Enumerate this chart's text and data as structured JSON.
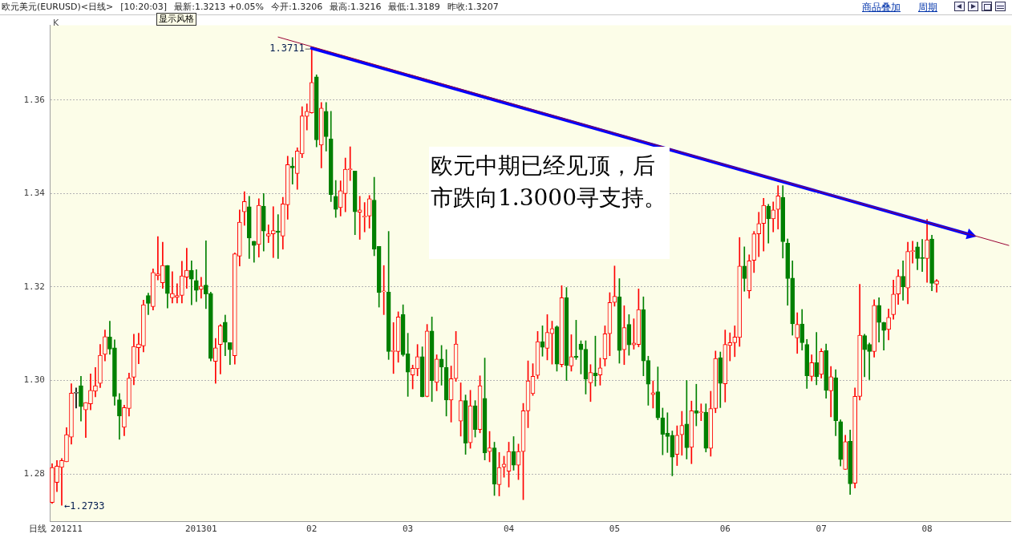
{
  "chart_data": {
    "type": "candlestick",
    "title": "欧元美元(EURUSD)<日线>",
    "annotations": [
      "[10:20:03]",
      "显示风格",
      "最新:1.3213 +0.05%",
      "今开:1.3206",
      "最高:1.3216",
      "最低:1.3189",
      "昨收:1.3207",
      "商品叠加",
      "周期",
      "K",
      "日线",
      "1.3711",
      "←1.2733",
      "欧元中期已经见顶，后市跌向1.3000寻支持。"
    ],
    "categories": [
      null,
      null,
      null,
      "201211",
      null,
      null,
      null,
      null,
      null,
      null,
      null,
      null,
      null,
      null,
      null,
      null,
      null,
      null,
      null,
      null,
      null,
      null,
      null,
      null,
      null,
      null,
      null,
      null,
      null,
      null,
      null,
      "201301",
      null,
      null,
      null,
      null,
      null,
      null,
      null,
      null,
      null,
      null,
      null,
      null,
      null,
      null,
      null,
      null,
      null,
      null,
      null,
      null,
      null,
      null,
      "02",
      null,
      null,
      null,
      null,
      null,
      null,
      null,
      null,
      null,
      null,
      null,
      null,
      null,
      null,
      null,
      null,
      null,
      null,
      null,
      "03",
      null,
      null,
      null,
      null,
      null,
      null,
      null,
      null,
      null,
      null,
      null,
      null,
      null,
      null,
      null,
      null,
      null,
      null,
      null,
      null,
      "04",
      null,
      null,
      null,
      null,
      null,
      null,
      null,
      null,
      null,
      null,
      null,
      null,
      null,
      null,
      null,
      null,
      null,
      null,
      null,
      null,
      null,
      "05",
      null,
      null,
      null,
      null,
      null,
      null,
      null,
      null,
      null,
      null,
      null,
      null,
      null,
      null,
      null,
      null,
      null,
      null,
      null,
      null,
      null,
      null,
      "06",
      null,
      null,
      null,
      null,
      null,
      null,
      null,
      null,
      null,
      null,
      null,
      null,
      null,
      null,
      null,
      null,
      null,
      null,
      null,
      "07",
      null,
      null,
      null,
      null,
      null,
      null,
      null,
      null,
      null,
      null,
      null,
      null,
      null,
      null,
      null,
      null,
      null,
      null,
      null,
      null,
      null,
      "08",
      null,
      null,
      null,
      null,
      null,
      null,
      null,
      null,
      null,
      null,
      null,
      null,
      null,
      null,
      null,
      null,
      null
    ],
    "ohlc": [
      [
        1.2739,
        1.2822,
        1.2737,
        1.2814
      ],
      [
        1.2782,
        1.2829,
        1.2762,
        1.2817
      ],
      [
        1.2814,
        1.2833,
        1.2733,
        1.2829
      ],
      [
        1.2826,
        1.2899,
        1.2826,
        1.2884
      ],
      [
        1.2879,
        1.2993,
        1.2864,
        1.2973
      ],
      [
        1.2973,
        1.2984,
        1.2941,
        1.2973
      ],
      [
        1.2989,
        1.3009,
        1.2913,
        1.2944
      ],
      [
        1.2937,
        1.2953,
        1.2878,
        1.2953
      ],
      [
        1.295,
        1.3014,
        1.2937,
        1.2979
      ],
      [
        1.2977,
        1.3028,
        1.2965,
        1.2989
      ],
      [
        1.2994,
        1.3077,
        1.2985,
        1.3054
      ],
      [
        1.3056,
        1.3108,
        1.3042,
        1.3094
      ],
      [
        1.3093,
        1.3127,
        1.3056,
        1.3067
      ],
      [
        1.307,
        1.3087,
        1.2947,
        1.2966
      ],
      [
        1.2959,
        1.2972,
        1.2874,
        1.2924
      ],
      [
        1.29,
        1.2947,
        1.2882,
        1.2942
      ],
      [
        1.294,
        1.3016,
        1.2924,
        1.3005
      ],
      [
        1.3007,
        1.3099,
        1.2991,
        1.3073
      ],
      [
        1.307,
        1.3101,
        1.3036,
        1.3078
      ],
      [
        1.3074,
        1.3172,
        1.3061,
        1.3162
      ],
      [
        1.3182,
        1.3187,
        1.3141,
        1.3165
      ],
      [
        1.3158,
        1.3239,
        1.3151,
        1.3231
      ],
      [
        1.3224,
        1.3308,
        1.3215,
        1.3228
      ],
      [
        1.3209,
        1.3296,
        1.3197,
        1.3246
      ],
      [
        1.3246,
        1.3246,
        1.3155,
        1.3186
      ],
      [
        1.3177,
        1.3233,
        1.3166,
        1.3186
      ],
      [
        1.3178,
        1.3207,
        1.3166,
        1.3182
      ],
      [
        1.3182,
        1.3255,
        1.3166,
        1.3224
      ],
      [
        1.3221,
        1.3283,
        1.3197,
        1.3236
      ],
      [
        1.3236,
        1.3256,
        1.3162,
        1.3217
      ],
      [
        1.3214,
        1.3237,
        1.3169,
        1.3193
      ],
      [
        1.3195,
        1.3221,
        1.3176,
        1.3202
      ],
      [
        1.3204,
        1.3299,
        1.3154,
        1.3185
      ],
      [
        1.3186,
        1.3189,
        1.3042,
        1.3047
      ],
      [
        1.3041,
        1.309,
        1.2994,
        1.307
      ],
      [
        1.3077,
        1.312,
        1.3014,
        1.3117
      ],
      [
        1.3125,
        1.314,
        1.3053,
        1.3082
      ],
      [
        1.3081,
        1.3081,
        1.3034,
        1.3066
      ],
      [
        1.3053,
        1.3273,
        1.3035,
        1.3271
      ],
      [
        1.3266,
        1.3365,
        1.3245,
        1.3339
      ],
      [
        1.3361,
        1.3404,
        1.3332,
        1.3383
      ],
      [
        1.3372,
        1.3394,
        1.3261,
        1.3305
      ],
      [
        1.3298,
        1.3298,
        1.3253,
        1.3289
      ],
      [
        1.3291,
        1.3389,
        1.3264,
        1.3375
      ],
      [
        1.3373,
        1.34,
        1.3277,
        1.332
      ],
      [
        1.3309,
        1.3333,
        1.3295,
        1.3314
      ],
      [
        1.3314,
        1.3372,
        1.3263,
        1.3321
      ],
      [
        1.332,
        1.3355,
        1.3261,
        1.3317
      ],
      [
        1.3309,
        1.3392,
        1.3281,
        1.3378
      ],
      [
        1.3376,
        1.348,
        1.3345,
        1.3462
      ],
      [
        1.3459,
        1.3477,
        1.342,
        1.3455
      ],
      [
        1.3443,
        1.3498,
        1.3409,
        1.3491
      ],
      [
        1.3485,
        1.3586,
        1.3477,
        1.3566
      ],
      [
        1.3565,
        1.3592,
        1.3536,
        1.3576
      ],
      [
        1.3573,
        1.3711,
        1.3572,
        1.3638
      ],
      [
        1.365,
        1.3654,
        1.35,
        1.3515
      ],
      [
        1.3504,
        1.3595,
        1.3455,
        1.3583
      ],
      [
        1.3576,
        1.3595,
        1.3491,
        1.3522
      ],
      [
        1.3517,
        1.3576,
        1.3383,
        1.3398
      ],
      [
        1.3394,
        1.3428,
        1.3349,
        1.3366
      ],
      [
        1.337,
        1.3427,
        1.3352,
        1.3406
      ],
      [
        1.34,
        1.3476,
        1.3361,
        1.3452
      ],
      [
        1.3451,
        1.35,
        1.3428,
        1.3451
      ],
      [
        1.3448,
        1.3448,
        1.3312,
        1.3361
      ],
      [
        1.336,
        1.3394,
        1.3302,
        1.3365
      ],
      [
        1.335,
        1.3381,
        1.3318,
        1.335
      ],
      [
        1.3352,
        1.3396,
        1.3326,
        1.3389
      ],
      [
        1.3386,
        1.3435,
        1.3267,
        1.3281
      ],
      [
        1.3287,
        1.3287,
        1.3157,
        1.3188
      ],
      [
        1.319,
        1.3246,
        1.3141,
        1.319
      ],
      [
        1.3189,
        1.3319,
        1.3045,
        1.3062
      ],
      [
        1.3062,
        1.3124,
        1.3015,
        1.3062
      ],
      [
        1.3062,
        1.3147,
        1.3039,
        1.3136
      ],
      [
        1.3141,
        1.3162,
        1.3052,
        1.3055
      ],
      [
        1.3057,
        1.3101,
        1.2966,
        1.3018
      ],
      [
        1.3012,
        1.3033,
        1.2982,
        1.3026
      ],
      [
        1.3025,
        1.3077,
        1.301,
        1.3051
      ],
      [
        1.3051,
        1.3072,
        1.2965,
        1.2965
      ],
      [
        1.2966,
        1.312,
        1.2965,
        1.3106
      ],
      [
        1.3106,
        1.3136,
        1.2955,
        1.3
      ],
      [
        1.2996,
        1.3055,
        1.2978,
        1.3046
      ],
      [
        1.3046,
        1.3075,
        1.299,
        1.3029
      ],
      [
        1.3028,
        1.3066,
        1.2924,
        1.2958
      ],
      [
        1.2958,
        1.3031,
        1.2911,
        1.3004
      ],
      [
        1.3004,
        1.3105,
        1.2998,
        1.3078
      ],
      [
        1.2913,
        1.2995,
        1.2881,
        1.2957
      ],
      [
        1.2957,
        1.2969,
        1.2842,
        1.2866
      ],
      [
        1.2867,
        1.2979,
        1.2855,
        1.2946
      ],
      [
        1.2946,
        1.2957,
        1.2879,
        1.2895
      ],
      [
        1.2895,
        1.301,
        1.2888,
        1.2989
      ],
      [
        1.2962,
        1.3048,
        1.283,
        1.2845
      ],
      [
        1.2848,
        1.2891,
        1.2826,
        1.2856
      ],
      [
        1.2856,
        1.2868,
        1.2754,
        1.2778
      ],
      [
        1.2777,
        1.2846,
        1.2753,
        1.2814
      ],
      [
        1.2815,
        1.2838,
        1.2793,
        1.2821
      ],
      [
        1.2806,
        1.2868,
        1.2772,
        1.2848
      ],
      [
        1.2848,
        1.288,
        1.2808,
        1.2819
      ],
      [
        1.2819,
        1.2864,
        1.2788,
        1.2848
      ],
      [
        1.2848,
        1.2951,
        1.2745,
        1.2935
      ],
      [
        1.2935,
        1.3042,
        1.2899,
        1.2999
      ],
      [
        1.2972,
        1.3036,
        1.2968,
        1.3009
      ],
      [
        1.3011,
        1.3105,
        1.3004,
        1.3083
      ],
      [
        1.3083,
        1.3117,
        1.3052,
        1.3071
      ],
      [
        1.3069,
        1.3141,
        1.3044,
        1.3103
      ],
      [
        1.31,
        1.3127,
        1.3035,
        1.3111
      ],
      [
        1.3115,
        1.3117,
        1.302,
        1.3035
      ],
      [
        1.3034,
        1.3203,
        1.3029,
        1.3177
      ],
      [
        1.3177,
        1.3199,
        1.3,
        1.3032
      ],
      [
        1.3031,
        1.3098,
        1.302,
        1.3051
      ],
      [
        1.3052,
        1.3129,
        1.3045,
        1.3049
      ],
      [
        1.3078,
        1.3085,
        1.3014,
        1.3066
      ],
      [
        1.3067,
        1.3085,
        1.2971,
        1.3003
      ],
      [
        1.2995,
        1.3034,
        1.2955,
        1.3017
      ],
      [
        1.3016,
        1.3095,
        1.2988,
        1.301
      ],
      [
        1.3012,
        1.3048,
        1.299,
        1.3027
      ],
      [
        1.3046,
        1.3117,
        1.3031,
        1.31
      ],
      [
        1.31,
        1.3188,
        1.3053,
        1.3167
      ],
      [
        1.3167,
        1.3245,
        1.3159,
        1.318
      ],
      [
        1.3179,
        1.3218,
        1.3037,
        1.3064
      ],
      [
        1.3066,
        1.316,
        1.3034,
        1.3113
      ],
      [
        1.312,
        1.3141,
        1.3054,
        1.3076
      ],
      [
        1.3076,
        1.3132,
        1.3067,
        1.308
      ],
      [
        1.3077,
        1.3196,
        1.3072,
        1.3152
      ],
      [
        1.3152,
        1.3179,
        1.301,
        1.3042
      ],
      [
        1.3043,
        1.3052,
        1.2947,
        1.2992
      ],
      [
        1.297,
        1.2999,
        1.2941,
        1.2974
      ],
      [
        1.2976,
        1.3029,
        1.2916,
        1.292
      ],
      [
        1.292,
        1.2941,
        1.2841,
        1.2885
      ],
      [
        1.2887,
        1.2931,
        1.2846,
        1.288
      ],
      [
        1.2883,
        1.2892,
        1.2796,
        1.2836
      ],
      [
        1.2842,
        1.2903,
        1.2818,
        1.2883
      ],
      [
        1.2884,
        1.2934,
        1.284,
        1.2904
      ],
      [
        1.2907,
        1.3,
        1.2832,
        1.2856
      ],
      [
        1.2857,
        1.2956,
        1.2822,
        1.2935
      ],
      [
        1.2935,
        1.2992,
        1.2903,
        1.293
      ],
      [
        1.2931,
        1.295,
        1.2914,
        1.2933
      ],
      [
        1.2932,
        1.295,
        1.2847,
        1.2855
      ],
      [
        1.2855,
        1.2977,
        1.2838,
        1.294
      ],
      [
        1.294,
        1.3063,
        1.2931,
        1.3047
      ],
      [
        1.3049,
        1.3061,
        1.2942,
        1.2994
      ],
      [
        1.2993,
        1.3108,
        1.2954,
        1.3077
      ],
      [
        1.3075,
        1.3102,
        1.3042,
        1.3081
      ],
      [
        1.3081,
        1.3117,
        1.3051,
        1.3093
      ],
      [
        1.3092,
        1.3306,
        1.3073,
        1.3245
      ],
      [
        1.3245,
        1.3286,
        1.3191,
        1.3218
      ],
      [
        1.3192,
        1.3269,
        1.3176,
        1.3256
      ],
      [
        1.3257,
        1.3319,
        1.3231,
        1.3314
      ],
      [
        1.3314,
        1.336,
        1.3265,
        1.3336
      ],
      [
        1.3336,
        1.339,
        1.3277,
        1.3375
      ],
      [
        1.3373,
        1.3377,
        1.3294,
        1.3346
      ],
      [
        1.3346,
        1.3382,
        1.3318,
        1.3365
      ],
      [
        1.3366,
        1.3417,
        1.3324,
        1.3395
      ],
      [
        1.3392,
        1.3417,
        1.3262,
        1.3297
      ],
      [
        1.3294,
        1.3303,
        1.3161,
        1.3218
      ],
      [
        1.3219,
        1.3256,
        1.3097,
        1.3121
      ],
      [
        1.3091,
        1.3145,
        1.3058,
        1.312
      ],
      [
        1.3121,
        1.3152,
        1.3065,
        1.3081
      ],
      [
        1.3077,
        1.3088,
        1.2983,
        1.301
      ],
      [
        1.3009,
        1.3055,
        1.2999,
        1.3038
      ],
      [
        1.3038,
        1.3103,
        1.2991,
        1.3008
      ],
      [
        1.3013,
        1.3068,
        1.3005,
        1.3062
      ],
      [
        1.3064,
        1.3078,
        1.2962,
        1.2979
      ],
      [
        1.2978,
        1.303,
        1.2922,
        1.3008
      ],
      [
        1.3006,
        1.3023,
        1.2882,
        1.2914
      ],
      [
        1.2912,
        1.2916,
        1.2817,
        1.2831
      ],
      [
        1.281,
        1.2883,
        1.281,
        1.2869
      ],
      [
        1.287,
        1.2894,
        1.2756,
        1.2779
      ],
      [
        1.278,
        1.2984,
        1.277,
        1.2966
      ],
      [
        1.2966,
        1.3206,
        1.2958,
        1.3097
      ],
      [
        1.3096,
        1.3099,
        1.3008,
        1.3066
      ],
      [
        1.3077,
        1.308,
        1.3002,
        1.3062
      ],
      [
        1.3062,
        1.3173,
        1.305,
        1.3161
      ],
      [
        1.3161,
        1.3177,
        1.3082,
        1.3124
      ],
      [
        1.3124,
        1.3125,
        1.3065,
        1.3107
      ],
      [
        1.3109,
        1.3153,
        1.3087,
        1.3135
      ],
      [
        1.3141,
        1.3215,
        1.3131,
        1.3185
      ],
      [
        1.3185,
        1.3237,
        1.3163,
        1.3223
      ],
      [
        1.3223,
        1.3256,
        1.3172,
        1.32
      ],
      [
        1.3198,
        1.3296,
        1.3164,
        1.3276
      ],
      [
        1.3276,
        1.3298,
        1.3251,
        1.3276
      ],
      [
        1.3286,
        1.3296,
        1.3237,
        1.3261
      ],
      [
        1.3263,
        1.3302,
        1.3233,
        1.3261
      ],
      [
        1.3261,
        1.3345,
        1.321,
        1.3301
      ],
      [
        1.3303,
        1.3311,
        1.3192,
        1.3208
      ],
      [
        1.3206,
        1.3216,
        1.3189,
        1.3213
      ],
      null,
      null,
      null,
      null,
      null,
      null,
      null,
      null,
      null,
      null,
      null,
      null,
      null,
      null,
      null
    ],
    "colors": [
      "#ff0000",
      "#ff0000",
      "#ff0000",
      "#ff0000",
      "#ff0000",
      "#000000",
      "#008000",
      "#ff0000",
      "#ff0000",
      "#ff0000",
      "#ff0000",
      "#ff0000",
      "#008000",
      "#008000",
      "#008000",
      "#ff0000",
      "#ff0000",
      "#ff0000",
      "#ff0000",
      "#ff0000",
      "#008000",
      "#ff0000",
      "#ff0000",
      "#ff0000",
      "#008000",
      "#ff0000",
      "#ff0000",
      "#ff0000",
      "#ff0000",
      "#008000",
      "#008000",
      "#ff0000",
      "#008000",
      "#008000",
      "#ff0000",
      "#ff0000",
      "#008000",
      "#008000",
      "#ff0000",
      "#ff0000",
      "#ff0000",
      "#008000",
      "#008000",
      "#ff0000",
      "#008000",
      "#ff0000",
      "#ff0000",
      "#008000",
      "#ff0000",
      "#ff0000",
      "#008000",
      "#ff0000",
      "#ff0000",
      "#ff0000",
      "#ff0000",
      "#008000",
      "#ff0000",
      "#008000",
      "#008000",
      "#008000",
      "#ff0000",
      "#ff0000",
      "#ff0000",
      "#008000",
      "#ff0000",
      "#ff0000",
      "#ff0000",
      "#008000",
      "#008000",
      "#ff0000",
      "#008000",
      "#ff0000",
      "#ff0000",
      "#008000",
      "#008000",
      "#ff0000",
      "#ff0000",
      "#008000",
      "#ff0000",
      "#008000",
      "#ff0000",
      "#008000",
      "#008000",
      "#ff0000",
      "#ff0000",
      "#ff0000",
      "#008000",
      "#ff0000",
      "#008000",
      "#ff0000",
      "#008000",
      "#ff0000",
      "#008000",
      "#ff0000",
      "#ff0000",
      "#ff0000",
      "#008000",
      "#ff0000",
      "#ff0000",
      "#ff0000",
      "#ff0000",
      "#ff0000",
      "#008000",
      "#ff0000",
      "#ff0000",
      "#008000",
      "#ff0000",
      "#008000",
      "#ff0000",
      "#008000",
      "#008000",
      "#008000",
      "#ff0000",
      "#008000",
      "#ff0000",
      "#ff0000",
      "#ff0000",
      "#ff0000",
      "#008000",
      "#ff0000",
      "#008000",
      "#ff0000",
      "#ff0000",
      "#008000",
      "#008000",
      "#ff0000",
      "#008000",
      "#008000",
      "#008000",
      "#008000",
      "#ff0000",
      "#ff0000",
      "#008000",
      "#ff0000",
      "#008000",
      "#ff0000",
      "#008000",
      "#ff0000",
      "#ff0000",
      "#008000",
      "#ff0000",
      "#ff0000",
      "#ff0000",
      "#ff0000",
      "#008000",
      "#ff0000",
      "#ff0000",
      "#ff0000",
      "#ff0000",
      "#008000",
      "#ff0000",
      "#ff0000",
      "#008000",
      "#008000",
      "#008000",
      "#ff0000",
      "#008000",
      "#008000",
      "#ff0000",
      "#008000",
      "#ff0000",
      "#008000",
      "#ff0000",
      "#008000",
      "#008000",
      "#ff0000",
      "#008000",
      "#ff0000",
      "#ff0000",
      "#008000",
      "#008000",
      "#ff0000",
      "#008000",
      "#008000",
      "#ff0000",
      "#ff0000",
      "#ff0000",
      "#008000",
      "#ff0000",
      "#ff0000",
      "#008000",
      "#008000",
      "#ff0000",
      "#008000",
      "#ff0000",
      null,
      null,
      null,
      null,
      null,
      null,
      null,
      null,
      null,
      null,
      null,
      null,
      null,
      null,
      null
    ],
    "series": [
      {
        "type": "line",
        "color": "#990033",
        "values": [
          null,
          null,
          null,
          null,
          null,
          null,
          null,
          null,
          null,
          null,
          null,
          null,
          null,
          null,
          null,
          null,
          null,
          null,
          null,
          null,
          null,
          null,
          null,
          null,
          null,
          null,
          null,
          null,
          null,
          null,
          null,
          null,
          null,
          null,
          null,
          null,
          null,
          null,
          null,
          null,
          null,
          null,
          null,
          null,
          null,
          null,
          null,
          1.3735,
          null,
          null,
          null,
          null,
          null,
          null,
          null,
          null,
          null,
          null,
          null,
          null,
          null,
          null,
          null,
          null,
          null,
          null,
          null,
          null,
          null,
          null,
          null,
          null,
          null,
          null,
          null,
          null,
          null,
          null,
          null,
          null,
          null,
          null,
          null,
          null,
          null,
          null,
          null,
          null,
          null,
          null,
          null,
          null,
          null,
          null,
          null,
          null,
          null,
          null,
          null,
          null,
          null,
          null,
          null,
          null,
          null,
          null,
          null,
          null,
          null,
          null,
          null,
          null,
          null,
          null,
          null,
          null,
          null,
          null,
          null,
          null,
          null,
          null,
          null,
          null,
          null,
          null,
          null,
          null,
          null,
          null,
          null,
          null,
          null,
          null,
          null,
          null,
          null,
          null,
          null,
          null,
          null,
          null,
          null,
          null,
          null,
          null,
          null,
          null,
          null,
          null,
          null,
          null,
          null,
          null,
          null,
          null,
          null,
          null,
          null,
          null,
          null,
          null,
          null,
          null,
          null,
          null,
          null,
          null,
          null,
          null,
          null,
          null,
          null,
          null,
          null,
          null,
          null,
          null,
          null,
          null,
          null,
          null,
          null,
          null,
          null,
          null,
          null,
          null,
          null,
          null,
          null,
          null,
          null,
          null,
          null,
          null,
          null,
          null,
          null,
          1.3289
        ]
      },
      {
        "type": "line",
        "color": "#0000ff",
        "values": [
          null,
          null,
          null,
          null,
          null,
          null,
          null,
          null,
          null,
          null,
          null,
          null,
          null,
          null,
          null,
          null,
          null,
          null,
          null,
          null,
          null,
          null,
          null,
          null,
          null,
          null,
          null,
          null,
          null,
          null,
          null,
          null,
          null,
          null,
          null,
          null,
          null,
          null,
          null,
          null,
          null,
          null,
          null,
          null,
          null,
          null,
          null,
          null,
          null,
          null,
          null,
          null,
          null,
          null,
          1.3711,
          null,
          null,
          null,
          null,
          null,
          null,
          null,
          null,
          null,
          null,
          null,
          null,
          null,
          null,
          null,
          null,
          null,
          null,
          null,
          null,
          null,
          null,
          null,
          null,
          null,
          null,
          null,
          null,
          null,
          null,
          null,
          null,
          null,
          null,
          null,
          null,
          null,
          null,
          null,
          null,
          null,
          null,
          null,
          null,
          null,
          null,
          null,
          null,
          null,
          null,
          null,
          null,
          null,
          null,
          null,
          null,
          null,
          null,
          null,
          null,
          null,
          null,
          null,
          null,
          null,
          null,
          null,
          null,
          null,
          null,
          null,
          null,
          null,
          null,
          null,
          null,
          null,
          null,
          null,
          null,
          null,
          null,
          null,
          null,
          null,
          null,
          null,
          null,
          null,
          null,
          null,
          null,
          null,
          null,
          null,
          null,
          null,
          null,
          null,
          null,
          null,
          null,
          null,
          null,
          null,
          null,
          null,
          null,
          null,
          null,
          null,
          null,
          null,
          null,
          null,
          null,
          null,
          null,
          null,
          null,
          null,
          null,
          null,
          null,
          null,
          null,
          null,
          null,
          null,
          null,
          null,
          null,
          null,
          null,
          null,
          null,
          1.3312,
          null,
          null,
          null,
          null,
          null,
          null,
          null,
          null
        ]
      }
    ],
    "ylim": [
      1.2699,
      1.376
    ],
    "yticks": [
      1.28,
      {
        "value": 1.3,
        "label": "1.30"
      },
      1.32,
      1.34,
      1.36
    ],
    "grid": "y"
  }
}
